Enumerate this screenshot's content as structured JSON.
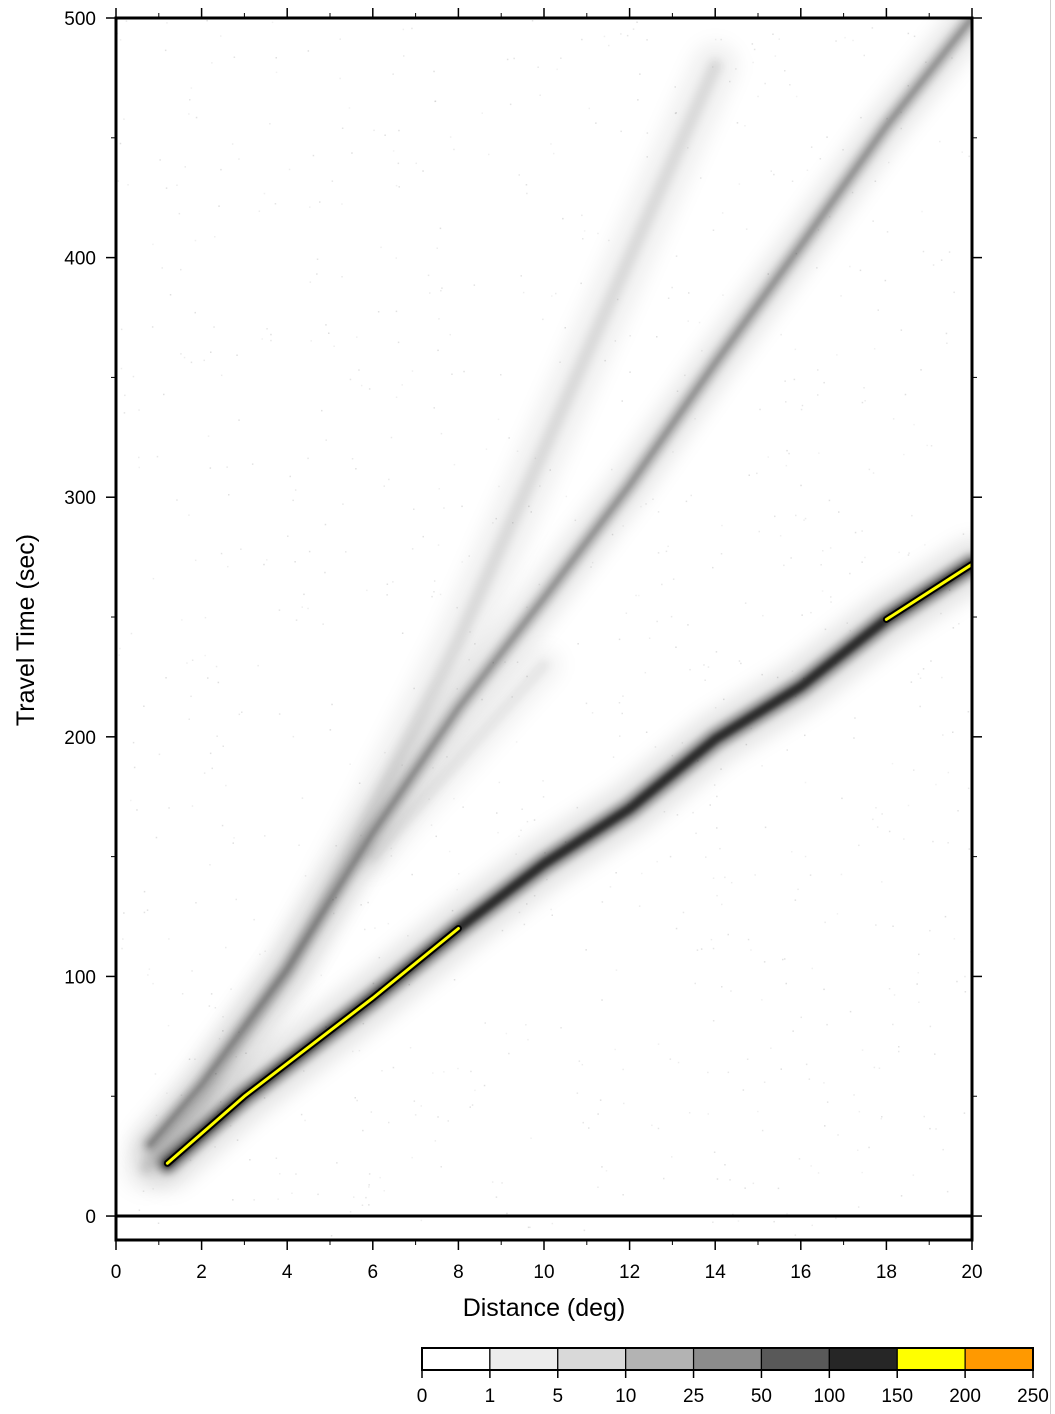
{
  "chart_data": {
    "type": "heatmap",
    "title": "",
    "xlabel": "Distance (deg)",
    "ylabel": "Travel Time (sec)",
    "xlim": [
      0,
      20
    ],
    "ylim": [
      -10,
      500
    ],
    "x_ticks": [
      "0",
      "2",
      "4",
      "6",
      "8",
      "10",
      "12",
      "14",
      "16",
      "18",
      "20"
    ],
    "y_ticks": [
      "0",
      "100",
      "200",
      "300",
      "400",
      "500"
    ],
    "grid": false,
    "zero_line": 0,
    "colorbar": {
      "placement": "bottom-right",
      "bounds": [
        "0",
        "1",
        "5",
        "10",
        "25",
        "50",
        "100",
        "150",
        "200",
        "250"
      ],
      "colors": [
        "#ffffff",
        "#ececec",
        "#d9d9d9",
        "#b3b3b3",
        "#8c8c8c",
        "#595959",
        "#262626",
        "#ffff00",
        "#ff9900"
      ]
    },
    "series": [
      {
        "points": [
          [
            1.2,
            22
          ],
          [
            3,
            50
          ],
          [
            6,
            91
          ],
          [
            8,
            120
          ],
          [
            10,
            147
          ],
          [
            12,
            170
          ],
          [
            14,
            199
          ],
          [
            16,
            221
          ],
          [
            18,
            249
          ],
          [
            20,
            272
          ]
        ],
        "intensity": "high"
      },
      {
        "points": [
          [
            0.8,
            30
          ],
          [
            2,
            55
          ],
          [
            4,
            103
          ],
          [
            6,
            160
          ],
          [
            8,
            212
          ],
          [
            10,
            258
          ],
          [
            12,
            305
          ],
          [
            14,
            356
          ],
          [
            16,
            405
          ],
          [
            18,
            455
          ],
          [
            20,
            500
          ]
        ],
        "intensity": "medium"
      },
      {
        "points": [
          [
            0.7,
            20
          ],
          [
            2,
            48
          ],
          [
            4,
            102
          ],
          [
            6,
            170
          ],
          [
            8,
            240
          ],
          [
            10,
            320
          ],
          [
            12,
            400
          ],
          [
            14,
            480
          ]
        ],
        "intensity": "low"
      },
      {
        "points": [
          [
            6,
            150
          ],
          [
            8,
            190
          ],
          [
            10,
            230
          ]
        ],
        "intensity": "very-low"
      }
    ]
  }
}
